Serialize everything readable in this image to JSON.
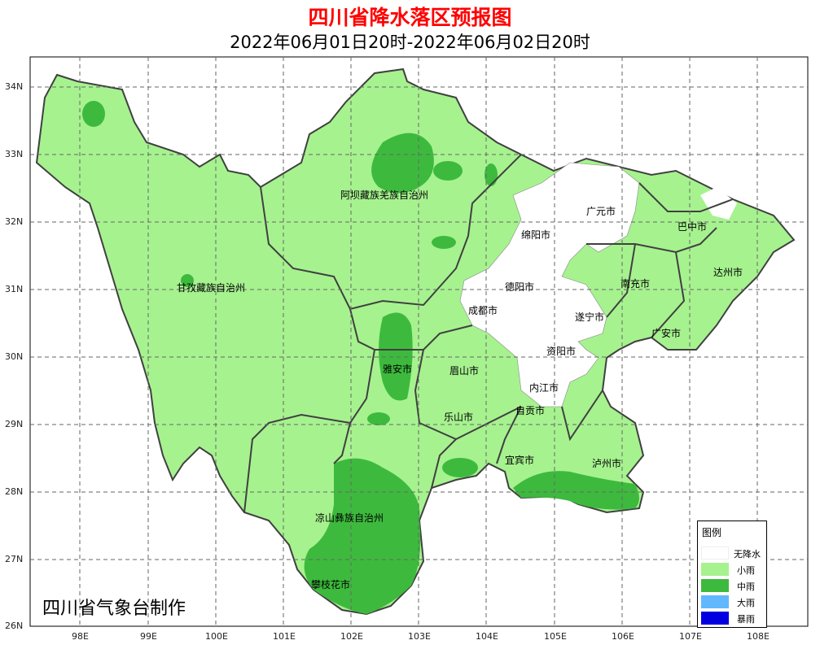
{
  "title": "四川省降水落区预报图",
  "subtitle": "2022年06月01日20时-2022年06月02日20时",
  "credit": "四川省气象台制作",
  "x_ticks": [
    "98E",
    "99E",
    "100E",
    "101E",
    "102E",
    "103E",
    "104E",
    "105E",
    "106E",
    "107E",
    "108E"
  ],
  "y_ticks": [
    "34N",
    "33N",
    "32N",
    "31N",
    "30N",
    "29N",
    "28N",
    "27N",
    "26N"
  ],
  "regions": [
    "阿坝藏族羌族自治州",
    "甘孜藏族自治州",
    "凉山彝族自治州",
    "攀枝花市",
    "广元市",
    "巴中市",
    "绵阳市",
    "达州市",
    "德阳市",
    "南充市",
    "成都市",
    "遂宁市",
    "广安市",
    "雅安市",
    "眉山市",
    "资阳市",
    "内江市",
    "乐山市",
    "自贡市",
    "宜宾市",
    "泸州市"
  ],
  "legend": {
    "title": "图例",
    "items": [
      {
        "label": "无降水",
        "color": "#ffffff"
      },
      {
        "label": "小雨",
        "color": "#a6f28f"
      },
      {
        "label": "中雨",
        "color": "#3dba3d"
      },
      {
        "label": "大雨",
        "color": "#61b8ff"
      },
      {
        "label": "暴雨",
        "color": "#0000e1"
      }
    ]
  }
}
